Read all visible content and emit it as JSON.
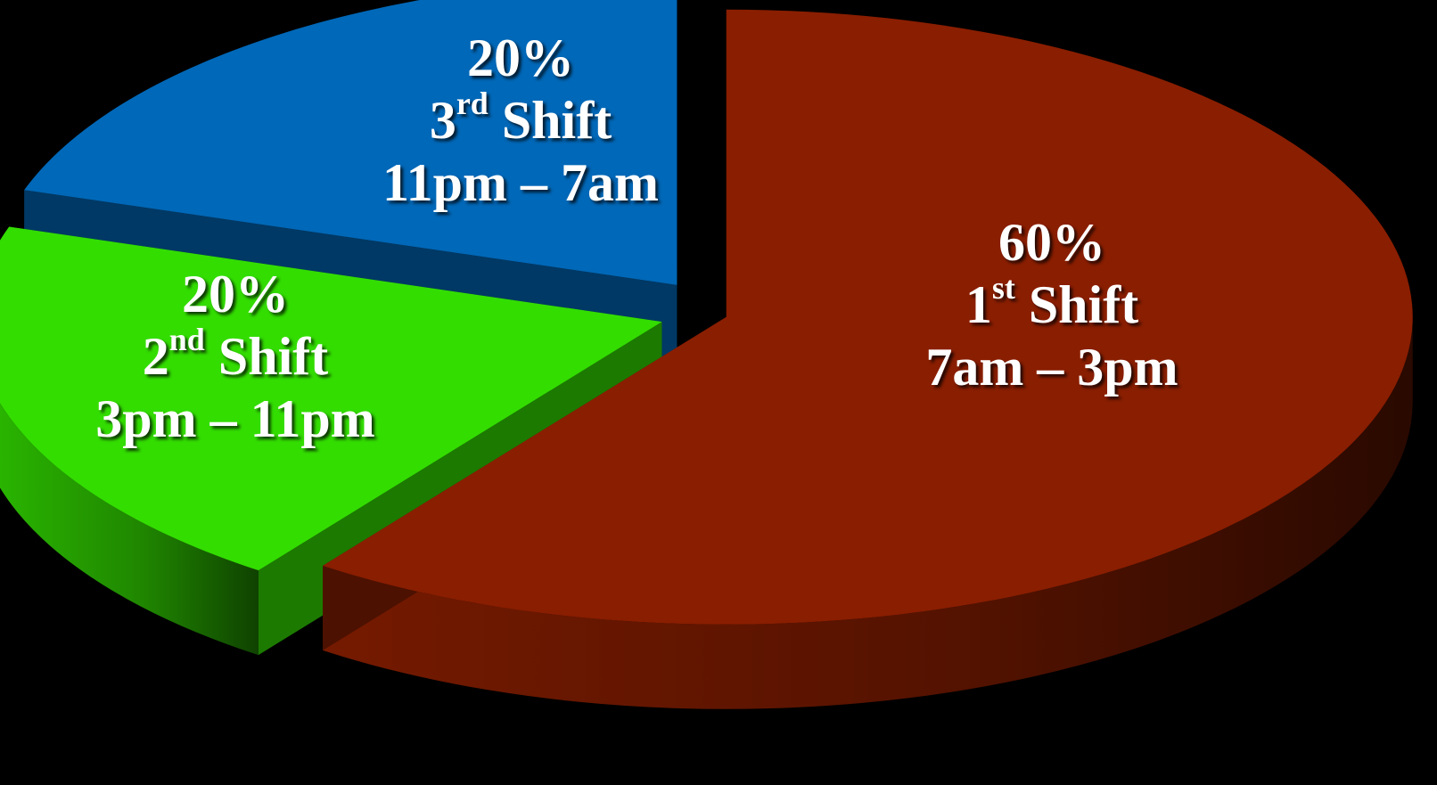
{
  "chart_data": {
    "type": "pie",
    "style": "3d-exploded",
    "slices": [
      {
        "value": 60,
        "percent_label": "60%",
        "ordinal": "1",
        "ordinal_suffix": "st",
        "shift_word": "Shift",
        "time_range": "7am – 3pm",
        "color": "#8a1e00"
      },
      {
        "value": 20,
        "percent_label": "20%",
        "ordinal": "2",
        "ordinal_suffix": "nd",
        "shift_word": "Shift",
        "time_range": "3pm – 11pm",
        "color": "#33dd00"
      },
      {
        "value": 20,
        "percent_label": "20%",
        "ordinal": "3",
        "ordinal_suffix": "rd",
        "shift_word": "Shift",
        "time_range": "11pm – 7am",
        "color": "#0068b8"
      }
    ],
    "background": "#000000"
  }
}
